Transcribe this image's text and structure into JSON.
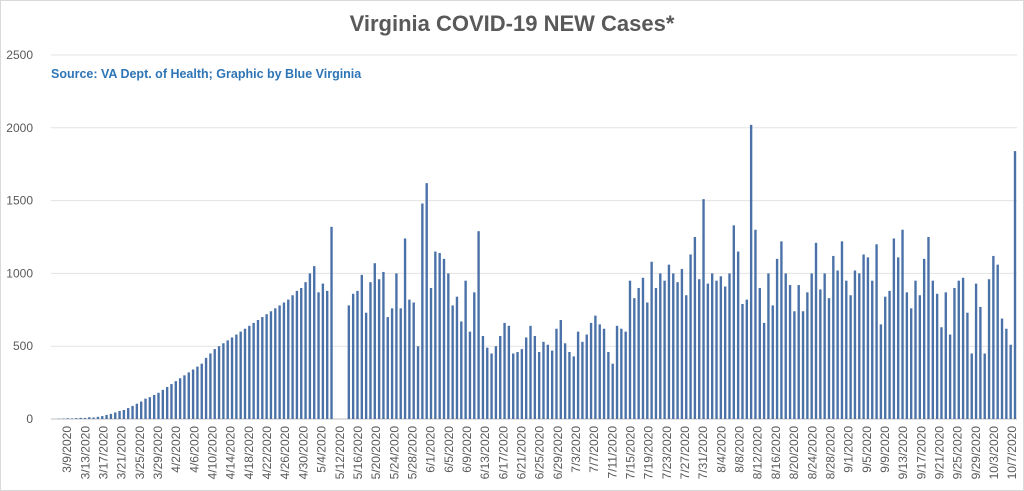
{
  "chart_data": {
    "type": "bar",
    "title": "Virginia COVID-19 NEW Cases*",
    "subtitle": "Source: VA Dept. of Health; Graphic by Blue Virginia",
    "xlabel": "",
    "ylabel": "",
    "ylim": [
      0,
      2500
    ],
    "y_ticks": [
      0,
      500,
      1000,
      1500,
      2000,
      2500
    ],
    "grid": true,
    "bar_color": "#4a72a8",
    "start_date": "3/9/2020",
    "x_tick_labels": [
      "3/9/2020",
      "3/13/2020",
      "3/17/2020",
      "3/21/2020",
      "3/25/2020",
      "3/29/2020",
      "4/2/2020",
      "4/6/2020",
      "4/10/2020",
      "4/14/2020",
      "4/18/2020",
      "4/22/2020",
      "4/26/2020",
      "4/30/2020",
      "5/4/2020",
      "5/12/2020",
      "5/16/2020",
      "5/20/2020",
      "5/24/2020",
      "5/28/2020",
      "6/1/2020",
      "6/5/2020",
      "6/9/2020",
      "6/13/2020",
      "6/17/2020",
      "6/21/2020",
      "6/25/2020",
      "6/29/2020",
      "7/3/2020",
      "7/7/2020",
      "7/11/2020",
      "7/15/2020",
      "7/19/2020",
      "7/23/2020",
      "7/27/2020",
      "7/31/2020",
      "8/4/2020",
      "8/8/2020",
      "8/12/2020",
      "8/16/2020",
      "8/20/2020",
      "8/24/2020",
      "8/28/2020",
      "9/1/2020",
      "9/5/2020",
      "9/9/2020",
      "9/13/2020",
      "9/17/2020",
      "9/21/2020",
      "9/25/2020",
      "9/29/2020",
      "10/3/2020",
      "10/7/2020"
    ],
    "values": [
      2,
      3,
      5,
      4,
      6,
      8,
      7,
      12,
      10,
      15,
      20,
      28,
      35,
      45,
      55,
      62,
      75,
      90,
      105,
      120,
      140,
      150,
      165,
      180,
      200,
      220,
      240,
      260,
      280,
      300,
      320,
      340,
      360,
      380,
      420,
      450,
      480,
      500,
      520,
      540,
      560,
      580,
      600,
      620,
      640,
      660,
      680,
      700,
      720,
      740,
      760,
      780,
      800,
      820,
      850,
      880,
      900,
      940,
      1000,
      1050,
      870,
      930,
      880,
      1320,
      0,
      0,
      0,
      780,
      860,
      880,
      990,
      730,
      940,
      1070,
      960,
      1010,
      700,
      760,
      1000,
      760,
      1240,
      820,
      800,
      500,
      1480,
      1620,
      900,
      1150,
      1140,
      1100,
      1000,
      780,
      840,
      670,
      950,
      600,
      870,
      1290,
      570,
      490,
      450,
      500,
      570,
      660,
      640,
      450,
      460,
      480,
      560,
      640,
      570,
      460,
      530,
      510,
      470,
      620,
      680,
      520,
      460,
      430,
      600,
      530,
      580,
      660,
      710,
      650,
      620,
      460,
      380,
      640,
      620,
      600,
      950,
      830,
      900,
      970,
      800,
      1080,
      900,
      1000,
      950,
      1060,
      1000,
      940,
      1030,
      850,
      1130,
      1250,
      960,
      1510,
      930,
      1000,
      950,
      980,
      910,
      1000,
      1330,
      1150,
      790,
      820,
      2020,
      1300,
      900,
      660,
      1000,
      780,
      1100,
      1220,
      1000,
      920,
      740,
      920,
      740,
      870,
      1000,
      1210,
      890,
      1000,
      830,
      1120,
      1020,
      1220,
      950,
      850,
      1020,
      1000,
      1130,
      1110,
      950,
      1200,
      650,
      840,
      880,
      1240,
      1110,
      1300,
      870,
      760,
      950,
      850,
      1100,
      1250,
      950,
      860,
      630,
      870,
      580,
      900,
      950,
      970,
      730,
      450,
      930,
      770,
      450,
      960,
      1120,
      1060,
      690,
      620,
      510,
      1840
    ]
  }
}
